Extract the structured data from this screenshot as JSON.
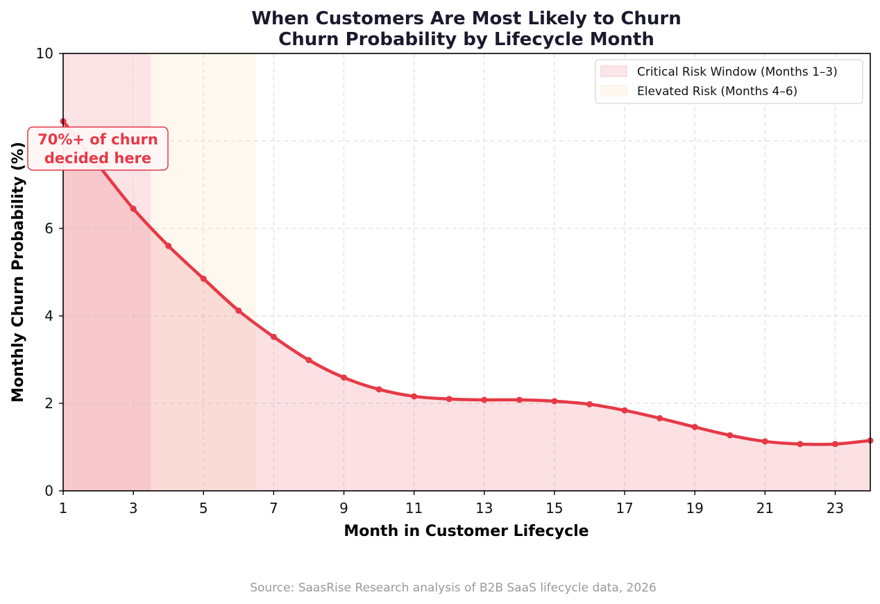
{
  "chart_data": {
    "type": "line",
    "title": "When Customers Are Most Likely to Churn",
    "subtitle": "Churn Probability by Lifecycle Month",
    "xlabel": "Month in Customer Lifecycle",
    "ylabel": "Monthly Churn Probability (%)",
    "xlim": [
      1,
      24
    ],
    "ylim": [
      0,
      10
    ],
    "x_ticks": [
      "1",
      "3",
      "5",
      "7",
      "9",
      "11",
      "13",
      "15",
      "17",
      "19",
      "21",
      "23"
    ],
    "y_ticks": [
      "0",
      "2",
      "4",
      "6",
      "10"
    ],
    "grid": true,
    "series": [
      {
        "x": [
          1,
          2,
          3,
          4,
          5,
          6,
          7,
          8,
          9,
          10,
          11,
          12,
          13,
          14,
          15,
          16,
          17,
          18,
          19,
          20,
          21,
          22,
          23,
          24
        ],
        "values": [
          8.45,
          7.45,
          6.45,
          5.6,
          4.85,
          4.12,
          3.52,
          2.99,
          2.59,
          2.32,
          2.16,
          2.1,
          2.08,
          2.08,
          2.05,
          1.98,
          1.84,
          1.66,
          1.46,
          1.27,
          1.13,
          1.07,
          1.07,
          1.15
        ],
        "color": "#e63946"
      }
    ],
    "shaded_regions": [
      {
        "label": "Critical Risk Window (Months 1–3)",
        "x_range": [
          1,
          3.5
        ],
        "color": "#f8d0d5"
      },
      {
        "label": "Elevated Risk (Months 4–6)",
        "x_range": [
          3.5,
          6.5
        ],
        "color": "#fdf5ea"
      }
    ],
    "legend_position": "top-right",
    "annotation": {
      "line1": "70%+ of churn",
      "line2": "decided here",
      "color": "#e63946"
    },
    "source": "Source: SaasRise Research analysis of B2B SaaS lifecycle data, 2026"
  }
}
